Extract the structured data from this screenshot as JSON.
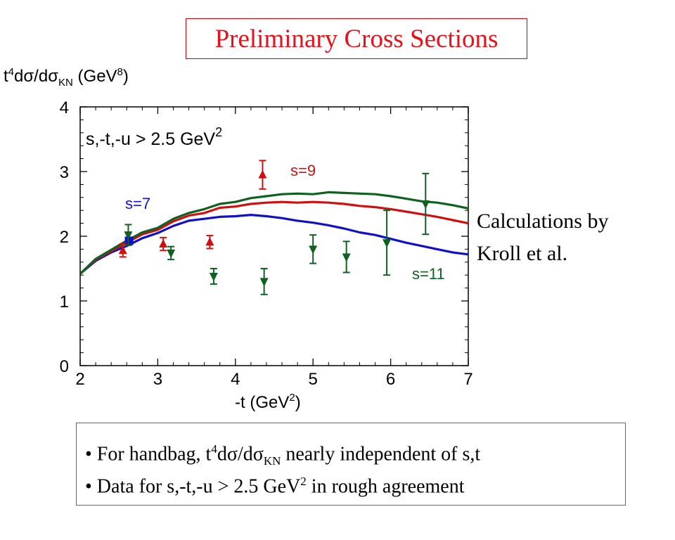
{
  "title": "Preliminary Cross Sections",
  "ylabel": {
    "prefix": "t",
    "sup1": "4",
    "mid": "dσ/dσ",
    "sub": "KN",
    "unit_open": " (GeV",
    "sup2": "8",
    "unit_close": ")"
  },
  "xlabel": {
    "text": "-t (GeV",
    "sup": "2",
    "close": ")"
  },
  "condition": {
    "text": "s,-t,-u > 2.5 GeV",
    "sup": "2"
  },
  "calc_note": {
    "line1": "Calculations by",
    "line2": "Kroll et al."
  },
  "bullets": {
    "b1": {
      "a": "• For handbag, t",
      "sup": "4",
      "b": "dσ/dσ",
      "sub": "KN",
      "c": " nearly independent of s,t"
    },
    "b2": {
      "a": "• Data for s,-t,-u > 2.5 GeV",
      "sup": "2",
      "b": " in rough agreement"
    }
  },
  "colors": {
    "s7": "#1010c8",
    "s9": "#d01010",
    "s11": "#106020",
    "title": "#e8101a"
  },
  "chart_data": {
    "type": "line",
    "xlim": [
      2,
      7
    ],
    "ylim": [
      0,
      4
    ],
    "xticks": [
      "2",
      "3",
      "4",
      "5",
      "6",
      "7"
    ],
    "yticks": [
      "0",
      "1",
      "2",
      "3",
      "4"
    ],
    "grid": false,
    "series": [
      {
        "name": "s=7",
        "kind": "curve",
        "color": "#1010c8",
        "x": [
          2.0,
          2.2,
          2.4,
          2.6,
          2.8,
          3.0,
          3.2,
          3.4,
          3.6,
          3.8,
          4.0,
          4.2,
          4.4,
          4.6,
          4.8,
          5.0,
          5.2,
          5.4,
          5.6,
          5.8,
          6.0,
          6.2,
          6.4,
          6.6,
          6.8,
          7.0
        ],
        "y": [
          1.42,
          1.62,
          1.75,
          1.85,
          1.97,
          2.05,
          2.16,
          2.24,
          2.27,
          2.3,
          2.31,
          2.33,
          2.31,
          2.28,
          2.24,
          2.21,
          2.17,
          2.12,
          2.06,
          2.02,
          1.96,
          1.9,
          1.85,
          1.8,
          1.75,
          1.72
        ]
      },
      {
        "name": "s=9",
        "kind": "curve",
        "color": "#d01010",
        "x": [
          2.0,
          2.2,
          2.4,
          2.6,
          2.8,
          3.0,
          3.2,
          3.4,
          3.6,
          3.8,
          4.0,
          4.2,
          4.4,
          4.6,
          4.8,
          5.0,
          5.2,
          5.4,
          5.6,
          5.8,
          6.0,
          6.2,
          6.4,
          6.6,
          6.8,
          7.0
        ],
        "y": [
          1.42,
          1.64,
          1.77,
          1.9,
          2.03,
          2.1,
          2.23,
          2.32,
          2.36,
          2.44,
          2.46,
          2.5,
          2.52,
          2.53,
          2.52,
          2.53,
          2.52,
          2.5,
          2.47,
          2.45,
          2.42,
          2.38,
          2.34,
          2.3,
          2.25,
          2.2
        ]
      },
      {
        "name": "s=11",
        "kind": "curve",
        "color": "#106020",
        "x": [
          2.0,
          2.2,
          2.4,
          2.6,
          2.8,
          3.0,
          3.2,
          3.4,
          3.6,
          3.8,
          4.0,
          4.2,
          4.4,
          4.6,
          4.8,
          5.0,
          5.2,
          5.4,
          5.6,
          5.8,
          6.0,
          6.2,
          6.4,
          6.6,
          6.8,
          7.0
        ],
        "y": [
          1.42,
          1.65,
          1.79,
          1.93,
          2.06,
          2.13,
          2.27,
          2.36,
          2.42,
          2.5,
          2.53,
          2.59,
          2.62,
          2.65,
          2.66,
          2.65,
          2.68,
          2.67,
          2.66,
          2.65,
          2.62,
          2.58,
          2.54,
          2.52,
          2.48,
          2.43
        ]
      },
      {
        "name": "s=7",
        "kind": "points",
        "marker": "square",
        "color": "#1010c8",
        "x": [
          2.63
        ],
        "y": [
          1.93
        ],
        "err": [
          0.05
        ]
      },
      {
        "name": "s=9",
        "kind": "points",
        "marker": "triangle-up",
        "color": "#d01010",
        "x": [
          2.55,
          3.07,
          3.67,
          4.35
        ],
        "y": [
          1.78,
          1.88,
          1.91,
          2.95
        ],
        "err": [
          0.1,
          0.1,
          0.1,
          0.22
        ]
      },
      {
        "name": "s=11",
        "kind": "points",
        "marker": "triangle-down",
        "color": "#106020",
        "x": [
          2.62,
          3.17,
          3.72,
          4.37,
          5.0,
          5.43,
          5.95,
          6.45
        ],
        "y": [
          2.02,
          1.74,
          1.38,
          1.3,
          1.8,
          1.68,
          1.9,
          2.5
        ],
        "err": [
          0.16,
          0.1,
          0.12,
          0.2,
          0.22,
          0.24,
          0.5,
          0.47
        ]
      }
    ],
    "annotations": [
      "s=7",
      "s=9",
      "s=11"
    ]
  }
}
